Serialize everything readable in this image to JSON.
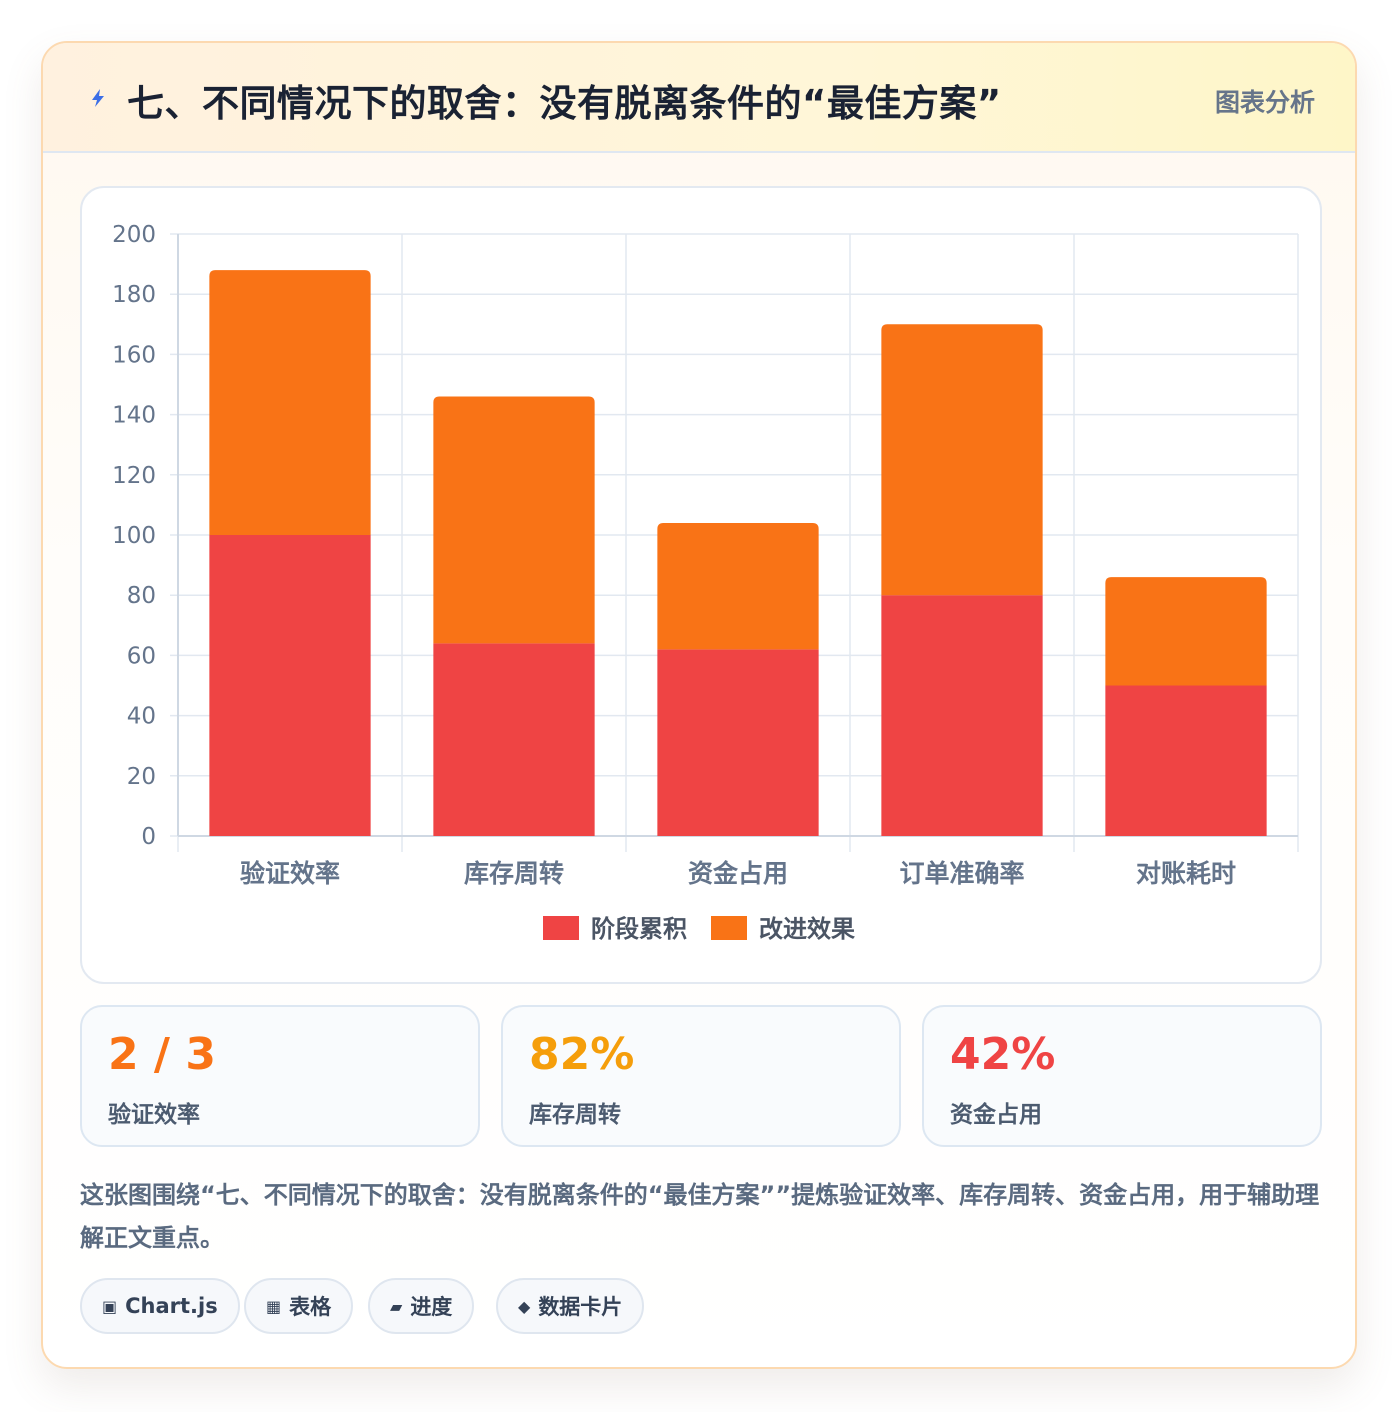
{
  "header": {
    "title": "七、不同情况下的取舍：没有脱离条件的“最佳方案”",
    "tag": "图表分析",
    "icon": "lightning-icon"
  },
  "colors": {
    "accent_orange": "#f97316",
    "accent_amber": "#f59e0b",
    "accent_red": "#ef4444",
    "grid": "#e2e8f0",
    "axis_text": "#64748b"
  },
  "chart_data": {
    "type": "bar",
    "stacked": true,
    "categories": [
      "验证效率",
      "库存周转",
      "资金占用",
      "订单准确率",
      "对账耗时"
    ],
    "series": [
      {
        "name": "阶段累积",
        "color": "#ef4444",
        "values": [
          100,
          64,
          62,
          80,
          50
        ]
      },
      {
        "name": "改进效果",
        "color": "#f97316",
        "values": [
          88,
          82,
          42,
          90,
          36
        ]
      }
    ],
    "ylim": [
      0,
      200
    ],
    "yticks": [
      0,
      20,
      40,
      60,
      80,
      100,
      120,
      140,
      160,
      180,
      200
    ],
    "grid": true,
    "legend": "bottom"
  },
  "stats": [
    {
      "value": "2 / 3",
      "label": "验证效率",
      "color": "#f97316"
    },
    {
      "value": "82%",
      "label": "库存周转",
      "color": "#f59e0b"
    },
    {
      "value": "42%",
      "label": "资金占用",
      "color": "#ef4444"
    }
  ],
  "description": "这张图围绕“七、不同情况下的取舍：没有脱离条件的“最佳方案””提炼验证效率、库存周转、资金占用，用于辅助理解正文重点。",
  "chips": [
    {
      "icon": "▣",
      "icon_name": "chart-icon",
      "label": "Chart.js"
    },
    {
      "icon": "▦",
      "icon_name": "table-icon",
      "label": "表格"
    },
    {
      "icon": "▰",
      "icon_name": "progress-icon",
      "label": "进度"
    },
    {
      "icon": "◆",
      "icon_name": "diamond-icon",
      "label": "数据卡片"
    }
  ]
}
